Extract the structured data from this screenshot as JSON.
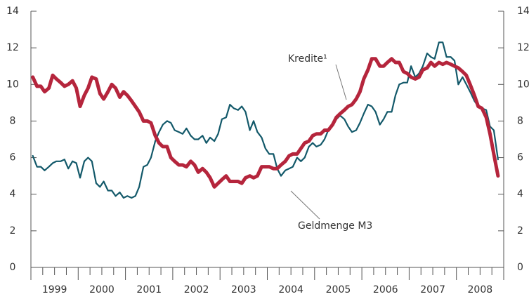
{
  "chart_data": {
    "type": "line",
    "xlim": [
      1999,
      2009
    ],
    "xticks": [
      {
        "value": 1999.5,
        "label": "1999"
      },
      {
        "value": 2000.5,
        "label": "2000"
      },
      {
        "value": 2001.5,
        "label": "2001"
      },
      {
        "value": 2002.5,
        "label": "2002"
      },
      {
        "value": 2003.5,
        "label": "2003"
      },
      {
        "value": 2004.5,
        "label": "2004"
      },
      {
        "value": 2005.5,
        "label": "2005"
      },
      {
        "value": 2006.5,
        "label": "2006"
      },
      {
        "value": 2007.5,
        "label": "2007"
      },
      {
        "value": 2008.5,
        "label": "2008"
      }
    ],
    "minor_xticks": [
      1999,
      1999.25,
      1999.5,
      1999.75,
      2000,
      2000.25,
      2000.5,
      2000.75,
      2001,
      2001.25,
      2001.5,
      2001.75,
      2002,
      2002.25,
      2002.5,
      2002.75,
      2003,
      2003.25,
      2003.5,
      2003.75,
      2004,
      2004.25,
      2004.5,
      2004.75,
      2005,
      2005.25,
      2005.5,
      2005.75,
      2006,
      2006.25,
      2006.5,
      2006.75,
      2007,
      2007.25,
      2007.5,
      2007.75,
      2008,
      2008.25,
      2008.5,
      2008.75,
      2009
    ],
    "ylim": [
      0,
      14
    ],
    "yticks": [
      0,
      2,
      4,
      6,
      8,
      10,
      12,
      14
    ],
    "y2lim": [
      0,
      14
    ],
    "y2ticks": [
      0,
      2,
      4,
      6,
      8,
      10,
      12,
      14
    ],
    "x": [
      1999.04,
      1999.13,
      1999.21,
      1999.29,
      1999.38,
      1999.46,
      1999.54,
      1999.63,
      1999.71,
      1999.79,
      1999.88,
      1999.96,
      2000.04,
      2000.13,
      2000.21,
      2000.29,
      2000.38,
      2000.46,
      2000.54,
      2000.63,
      2000.71,
      2000.79,
      2000.88,
      2000.96,
      2001.04,
      2001.13,
      2001.21,
      2001.29,
      2001.38,
      2001.46,
      2001.54,
      2001.63,
      2001.71,
      2001.79,
      2001.88,
      2001.96,
      2002.04,
      2002.13,
      2002.21,
      2002.29,
      2002.38,
      2002.46,
      2002.54,
      2002.63,
      2002.71,
      2002.79,
      2002.88,
      2002.96,
      2003.04,
      2003.13,
      2003.21,
      2003.29,
      2003.38,
      2003.46,
      2003.54,
      2003.63,
      2003.71,
      2003.79,
      2003.88,
      2003.96,
      2004.04,
      2004.13,
      2004.21,
      2004.29,
      2004.38,
      2004.46,
      2004.54,
      2004.63,
      2004.71,
      2004.79,
      2004.88,
      2004.96,
      2005.04,
      2005.13,
      2005.21,
      2005.29,
      2005.38,
      2005.46,
      2005.54,
      2005.63,
      2005.71,
      2005.79,
      2005.88,
      2005.96,
      2006.04,
      2006.13,
      2006.21,
      2006.29,
      2006.38,
      2006.46,
      2006.54,
      2006.63,
      2006.71,
      2006.79,
      2006.88,
      2006.96,
      2007.04,
      2007.13,
      2007.21,
      2007.29,
      2007.38,
      2007.46,
      2007.54,
      2007.63,
      2007.71,
      2007.79,
      2007.88,
      2007.96,
      2008.04,
      2008.13,
      2008.21,
      2008.29,
      2008.38,
      2008.46,
      2008.54,
      2008.63,
      2008.71,
      2008.79,
      2008.88
    ],
    "series": [
      {
        "name": "Geldmenge M3",
        "color": "#13596a",
        "values": [
          6.1,
          5.5,
          5.5,
          5.3,
          5.5,
          5.7,
          5.8,
          5.8,
          5.9,
          5.4,
          5.8,
          5.7,
          4.9,
          5.8,
          6.0,
          5.8,
          4.6,
          4.4,
          4.7,
          4.2,
          4.2,
          3.9,
          4.1,
          3.8,
          3.9,
          3.8,
          3.9,
          4.4,
          5.5,
          5.6,
          6.0,
          6.9,
          7.4,
          7.8,
          8.0,
          7.9,
          7.5,
          7.4,
          7.3,
          7.6,
          7.2,
          7.0,
          7.0,
          7.2,
          6.8,
          7.1,
          6.9,
          7.3,
          8.1,
          8.2,
          8.9,
          8.7,
          8.6,
          8.8,
          8.5,
          7.5,
          8.0,
          7.4,
          7.1,
          6.5,
          6.2,
          6.2,
          5.4,
          5.0,
          5.3,
          5.4,
          5.5,
          6.0,
          5.8,
          6.0,
          6.6,
          6.8,
          6.6,
          6.7,
          7.0,
          7.5,
          7.8,
          8.1,
          8.3,
          8.1,
          7.7,
          7.4,
          7.5,
          7.9,
          8.4,
          8.9,
          8.8,
          8.5,
          7.8,
          8.1,
          8.5,
          8.5,
          9.4,
          10.0,
          10.1,
          10.1,
          11.0,
          10.4,
          10.6,
          11.0,
          11.7,
          11.5,
          11.4,
          12.3,
          12.3,
          11.5,
          11.5,
          11.3,
          10.0,
          10.4,
          10.0,
          9.6,
          9.1,
          8.8,
          8.7,
          8.6,
          7.7,
          7.5,
          5.9
        ]
      },
      {
        "name": "Kredite¹",
        "color": "#b5253c",
        "values": [
          10.4,
          9.9,
          9.9,
          9.6,
          9.8,
          10.5,
          10.3,
          10.1,
          9.9,
          10.0,
          10.2,
          9.8,
          8.8,
          9.4,
          9.8,
          10.4,
          10.3,
          9.5,
          9.2,
          9.6,
          10.0,
          9.8,
          9.3,
          9.6,
          9.4,
          9.1,
          8.8,
          8.5,
          8.0,
          8.0,
          7.9,
          7.2,
          6.8,
          6.6,
          6.6,
          6.0,
          5.8,
          5.6,
          5.6,
          5.5,
          5.8,
          5.6,
          5.2,
          5.4,
          5.2,
          4.9,
          4.4,
          4.6,
          4.8,
          5.0,
          4.7,
          4.7,
          4.7,
          4.6,
          4.9,
          5.0,
          4.9,
          5.0,
          5.5,
          5.5,
          5.5,
          5.4,
          5.4,
          5.6,
          5.8,
          6.1,
          6.2,
          6.2,
          6.5,
          6.8,
          6.9,
          7.2,
          7.3,
          7.3,
          7.5,
          7.5,
          7.8,
          8.2,
          8.4,
          8.6,
          8.8,
          8.9,
          9.2,
          9.6,
          10.3,
          10.8,
          11.4,
          11.4,
          11.0,
          11.0,
          11.2,
          11.4,
          11.2,
          11.2,
          10.7,
          10.6,
          10.4,
          10.3,
          10.4,
          10.8,
          10.9,
          11.2,
          11.0,
          11.2,
          11.1,
          11.2,
          11.1,
          11.0,
          10.9,
          10.7,
          10.5,
          10.0,
          9.4,
          8.8,
          8.7,
          8.2,
          7.3,
          6.2,
          5.0
        ]
      }
    ]
  }
}
